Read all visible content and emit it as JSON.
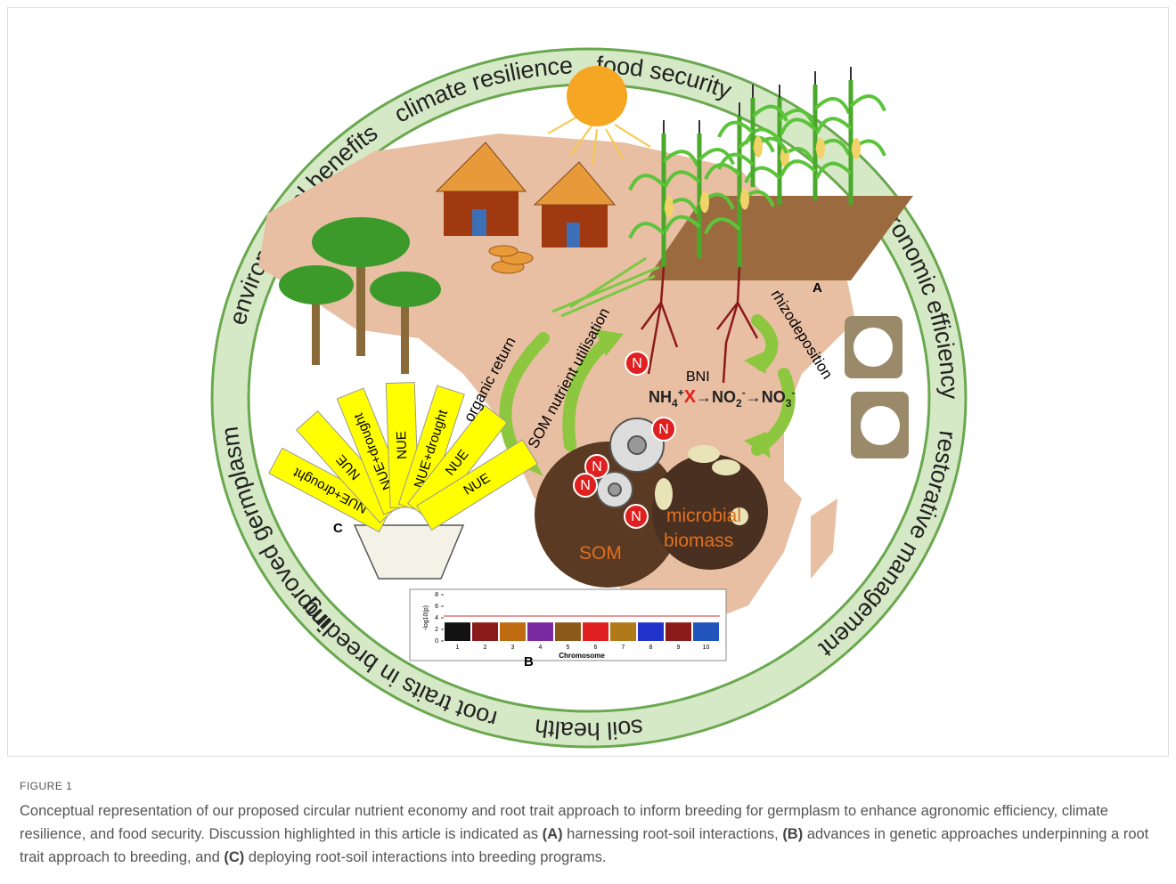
{
  "figure": {
    "ring": [
      "environmental benefits",
      "climate resilience",
      "food security",
      "agronomic efficiency",
      "restorative management",
      "soil health",
      "root traits in breeding",
      "improved germplasm"
    ],
    "panel_labels": {
      "a": "A",
      "b": "B",
      "c": "C"
    },
    "process_labels": {
      "rhizodeposition": "rhizodeposition",
      "organic_return": "organic return",
      "som_utilisation": "SOM nutrient utilisation",
      "bni": "BNI"
    },
    "nitrogen": "N",
    "chemistry": {
      "nh": "NH",
      "four": "4",
      "plus": "+",
      "block": "X",
      "arrow_no": "→NO",
      "two": "2",
      "minus": "-",
      "three": "3"
    },
    "soil": {
      "som": "SOM",
      "microbial": "microbial",
      "biomass": "biomass"
    },
    "nue_sticks": [
      "NUE+drought",
      "NUE",
      "NUE+drought",
      "NUE",
      "NUE+drought",
      "NUE",
      "NUE"
    ],
    "manhattan": {
      "y_label": "-log10(p)",
      "x_label": "Chromosome",
      "yticks": [
        0,
        2,
        4,
        6,
        8
      ],
      "chromosomes": [
        "1",
        "2",
        "3",
        "4",
        "5",
        "6",
        "7",
        "8",
        "9",
        "10"
      ]
    }
  },
  "caption": {
    "label": "FIGURE 1",
    "text_1": "Conceptual representation of our proposed circular nutrient economy and root trait approach to inform breeding for germplasm to enhance agronomic efficiency, climate resilience, and food security. Discussion highlighted in this article is indicated as",
    "marker_a": "(A)",
    "text_2": "harnessing root-soil interactions,",
    "marker_b": "(B)",
    "text_3": "advances in genetic approaches underpinning a root trait approach to breeding, and",
    "marker_c": "(C)",
    "text_4": "deploying root-soil interactions into breeding programs."
  }
}
